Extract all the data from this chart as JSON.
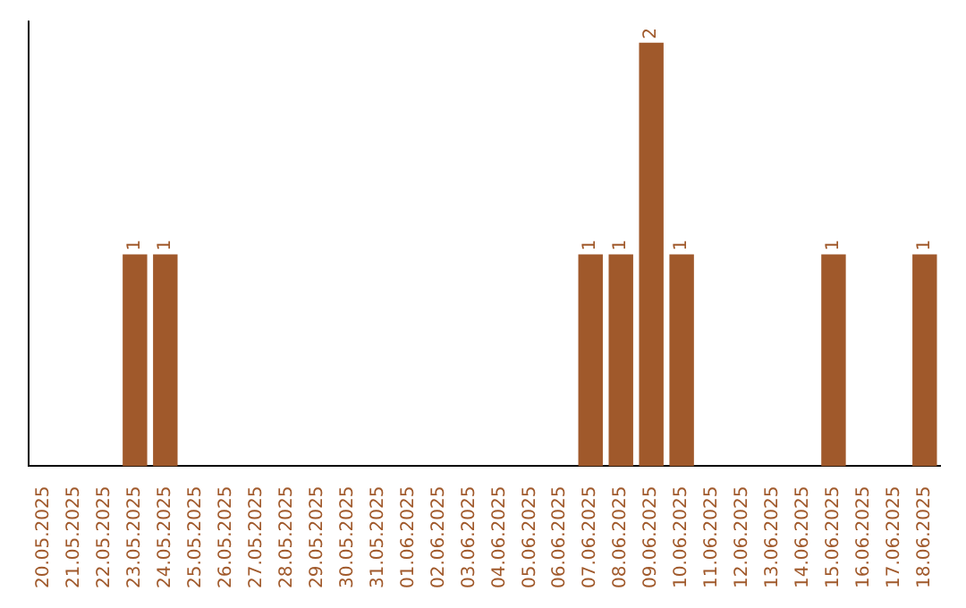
{
  "chart_data": {
    "type": "bar",
    "categories": [
      "20.05.2025",
      "21.05.2025",
      "22.05.2025",
      "23.05.2025",
      "24.05.2025",
      "25.05.2025",
      "26.05.2025",
      "27.05.2025",
      "28.05.2025",
      "29.05.2025",
      "30.05.2025",
      "31.05.2025",
      "01.06.2025",
      "02.06.2025",
      "03.06.2025",
      "04.06.2025",
      "05.06.2025",
      "06.06.2025",
      "07.06.2025",
      "08.06.2025",
      "09.06.2025",
      "10.06.2025",
      "11.06.2025",
      "12.06.2025",
      "13.06.2025",
      "14.06.2025",
      "15.06.2025",
      "16.06.2025",
      "17.06.2025",
      "18.06.2025"
    ],
    "values": [
      0,
      0,
      0,
      1,
      1,
      0,
      0,
      0,
      0,
      0,
      0,
      0,
      0,
      0,
      0,
      0,
      0,
      0,
      1,
      1,
      2,
      1,
      0,
      0,
      0,
      0,
      1,
      0,
      0,
      1
    ],
    "value_labels": [
      null,
      null,
      null,
      "1",
      "1",
      null,
      null,
      null,
      null,
      null,
      null,
      null,
      null,
      null,
      null,
      null,
      null,
      null,
      "1",
      "1",
      "2",
      "1",
      null,
      null,
      null,
      null,
      "1",
      null,
      null,
      "1"
    ],
    "color": "#a0592b",
    "ylim": [
      0,
      2.1
    ],
    "tick_labels": "x",
    "grid": false,
    "legend": false
  }
}
